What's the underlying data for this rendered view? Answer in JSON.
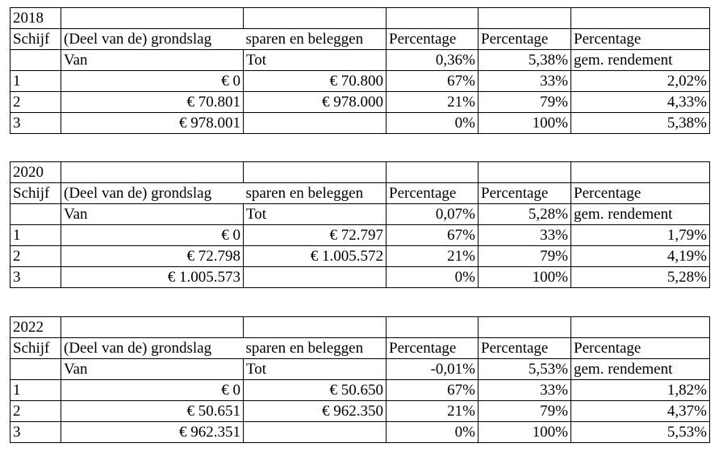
{
  "tables": [
    {
      "year": "2018",
      "header": {
        "schijf": "Schijf",
        "grondslag_part1": "(Deel van de) grondslag",
        "grondslag_part2": "sparen en beleggen",
        "pct1": "Percentage",
        "pct2": "Percentage",
        "pct3": "Percentage"
      },
      "subheader": {
        "van": "Van",
        "tot": "Tot",
        "rate1": "0,36%",
        "rate2": "5,38%",
        "rate3": "gem. rendement"
      },
      "rows": [
        {
          "schijf": "1",
          "van": "€ 0",
          "tot": "€ 70.800",
          "p1": "67%",
          "p2": "33%",
          "p3": "2,02%"
        },
        {
          "schijf": "2",
          "van": "€ 70.801",
          "tot": "€ 978.000",
          "p1": "21%",
          "p2": "79%",
          "p3": "4,33%"
        },
        {
          "schijf": "3",
          "van": "€ 978.001",
          "tot": "",
          "p1": "0%",
          "p2": "100%",
          "p3": "5,38%"
        }
      ]
    },
    {
      "year": "2020",
      "header": {
        "schijf": "Schijf",
        "grondslag_part1": "(Deel van de) grondslag",
        "grondslag_part2": "sparen en beleggen",
        "pct1": "Percentage",
        "pct2": "Percentage",
        "pct3": "Percentage"
      },
      "subheader": {
        "van": "Van",
        "tot": "Tot",
        "rate1": "0,07%",
        "rate2": "5,28%",
        "rate3": "gem. rendement"
      },
      "rows": [
        {
          "schijf": "1",
          "van": "€ 0",
          "tot": "€ 72.797",
          "p1": "67%",
          "p2": "33%",
          "p3": "1,79%"
        },
        {
          "schijf": "2",
          "van": "€ 72.798",
          "tot": "€ 1.005.572",
          "p1": "21%",
          "p2": "79%",
          "p3": "4,19%"
        },
        {
          "schijf": "3",
          "van": "€ 1.005.573",
          "tot": "",
          "p1": "0%",
          "p2": "100%",
          "p3": "5,28%"
        }
      ]
    },
    {
      "year": "2022",
      "header": {
        "schijf": "Schijf",
        "grondslag_part1": "(Deel van de) grondslag",
        "grondslag_part2": "sparen en beleggen",
        "pct1": "Percentage",
        "pct2": "Percentage",
        "pct3": "Percentage"
      },
      "subheader": {
        "van": "Van",
        "tot": "Tot",
        "rate1": "-0,01%",
        "rate2": "5,53%",
        "rate3": "gem. rendement"
      },
      "rows": [
        {
          "schijf": "1",
          "van": "€ 0",
          "tot": "€ 50.650",
          "p1": "67%",
          "p2": "33%",
          "p3": "1,82%"
        },
        {
          "schijf": "2",
          "van": "€ 50.651",
          "tot": "€ 962.350",
          "p1": "21%",
          "p2": "79%",
          "p3": "4,37%"
        },
        {
          "schijf": "3",
          "van": "€ 962.351",
          "tot": "",
          "p1": "0%",
          "p2": "100%",
          "p3": "5,53%"
        }
      ]
    }
  ]
}
